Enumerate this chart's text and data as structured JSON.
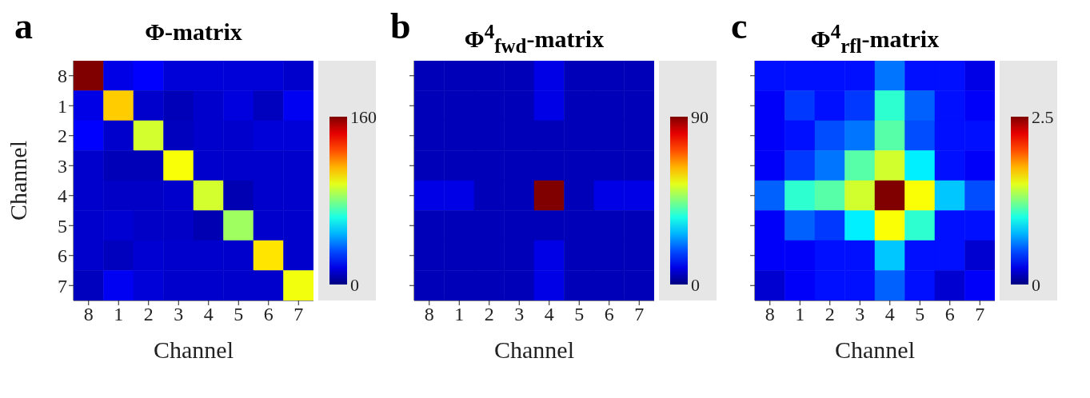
{
  "chart_data": [
    {
      "type": "heatmap",
      "title": "Φ-matrix",
      "annotations": [
        "a"
      ],
      "xlabel": "Channel",
      "ylabel": "Channel",
      "categories": [
        "8",
        "1",
        "2",
        "3",
        "4",
        "5",
        "6",
        "7"
      ],
      "y_categories": [
        "8",
        "1",
        "2",
        "3",
        "4",
        "5",
        "6",
        "7"
      ],
      "cells": [
        [
          160,
          16,
          20,
          14,
          14,
          14,
          14,
          12
        ],
        [
          16,
          108,
          12,
          9,
          12,
          15,
          10,
          18
        ],
        [
          20,
          12,
          93,
          10,
          12,
          12,
          14,
          14
        ],
        [
          12,
          9,
          9,
          99,
          12,
          12,
          12,
          12
        ],
        [
          12,
          11,
          11,
          12,
          93,
          8,
          12,
          12
        ],
        [
          12,
          13,
          11,
          11,
          8,
          85,
          12,
          12
        ],
        [
          12,
          10,
          13,
          12,
          12,
          12,
          104,
          12
        ],
        [
          10,
          18,
          14,
          12,
          12,
          12,
          12,
          98
        ]
      ],
      "clim": [
        0,
        160
      ],
      "cticks": [
        0,
        160
      ]
    },
    {
      "type": "heatmap",
      "title": "Φ$^{4}$$_{fwd}$-matrix",
      "annotations": [
        "b"
      ],
      "xlabel": "Channel",
      "tick_labels": "x",
      "categories": [
        "8",
        "1",
        "2",
        "3",
        "4",
        "5",
        "6",
        "7"
      ],
      "y_categories": [
        "8",
        "1",
        "2",
        "3",
        "4",
        "5",
        "6",
        "7"
      ],
      "cells": [
        [
          5,
          5,
          5,
          5,
          9,
          5,
          5,
          5
        ],
        [
          5,
          5,
          5,
          5,
          9,
          5,
          5,
          5
        ],
        [
          5,
          5,
          5,
          5,
          5,
          5,
          5,
          5
        ],
        [
          5,
          5,
          5,
          5,
          5,
          5,
          5,
          5
        ],
        [
          9,
          9,
          5,
          5,
          90,
          5,
          9,
          9
        ],
        [
          5,
          5,
          5,
          5,
          5,
          5,
          5,
          5
        ],
        [
          5,
          5,
          5,
          5,
          9,
          5,
          5,
          5
        ],
        [
          5,
          5,
          5,
          5,
          9,
          5,
          5,
          5
        ]
      ],
      "clim": [
        0,
        90
      ],
      "cticks": [
        0,
        90
      ]
    },
    {
      "type": "heatmap",
      "title": "Φ$^{4}$$_{rfl}$-matrix",
      "annotations": [
        "c"
      ],
      "xlabel": "Channel",
      "tick_labels": "x",
      "categories": [
        "8",
        "1",
        "2",
        "3",
        "4",
        "5",
        "6",
        "7"
      ],
      "y_categories": [
        "8",
        "1",
        "2",
        "3",
        "4",
        "5",
        "6",
        "7"
      ],
      "cells": [
        [
          0.35,
          0.35,
          0.35,
          0.35,
          0.6,
          0.35,
          0.35,
          0.25
        ],
        [
          0.3,
          0.45,
          0.35,
          0.45,
          1.05,
          0.55,
          0.35,
          0.3
        ],
        [
          0.3,
          0.35,
          0.5,
          0.6,
          1.15,
          0.5,
          0.35,
          0.35
        ],
        [
          0.3,
          0.45,
          0.6,
          1.15,
          1.45,
          0.9,
          0.35,
          0.3
        ],
        [
          0.55,
          1.05,
          1.15,
          1.45,
          2.5,
          1.55,
          0.8,
          0.5
        ],
        [
          0.3,
          0.55,
          0.45,
          0.9,
          1.55,
          1.05,
          0.35,
          0.35
        ],
        [
          0.3,
          0.3,
          0.35,
          0.35,
          0.8,
          0.35,
          0.35,
          0.2
        ],
        [
          0.2,
          0.3,
          0.35,
          0.35,
          0.55,
          0.35,
          0.2,
          0.3
        ]
      ],
      "clim": [
        0,
        2.5
      ],
      "cticks": [
        0,
        2.5
      ]
    }
  ]
}
